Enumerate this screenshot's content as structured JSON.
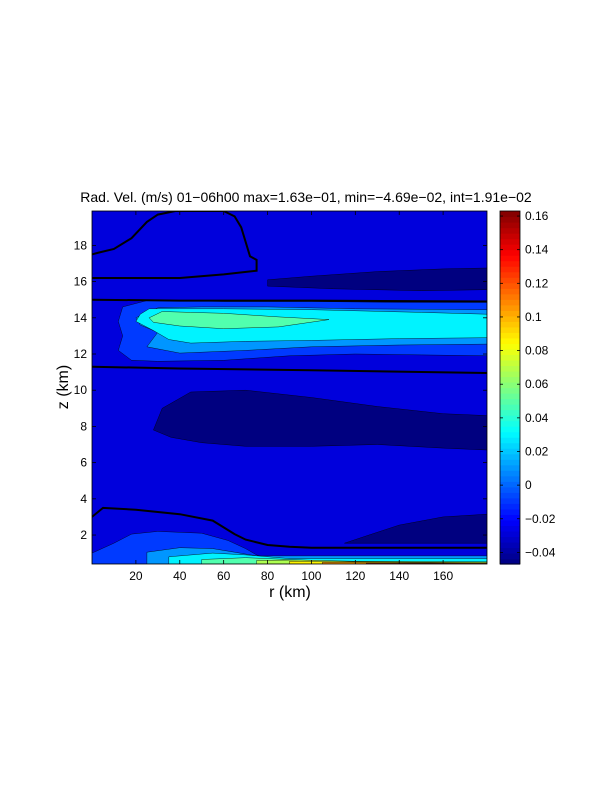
{
  "chart_data": {
    "type": "heatmap",
    "subtype": "filled-contour",
    "title": "Rad. Vel. (m/s) 01−06h00 max=1.63e−01, min=−4.69e−02, int=1.91e−02",
    "xlabel": "r (km)",
    "ylabel": "z (km)",
    "xlim": [
      0,
      180
    ],
    "ylim": [
      0.4,
      19.9
    ],
    "xticks": [
      20,
      40,
      60,
      80,
      100,
      120,
      140,
      160
    ],
    "yticks": [
      2,
      4,
      6,
      8,
      10,
      12,
      14,
      16,
      18
    ],
    "colorbar": {
      "colormap": "jet",
      "range": [
        -0.0469,
        0.163
      ],
      "ticks": [
        -0.04,
        -0.02,
        0,
        0.02,
        0.04,
        0.06,
        0.08,
        0.1,
        0.12,
        0.14,
        0.16
      ],
      "tick_labels": [
        "−0.04",
        "−0.02",
        "0",
        "0.02",
        "0.04",
        "0.06",
        "0.08",
        "0.1",
        "0.12",
        "0.14",
        "0.16"
      ]
    },
    "contour_interval": 0.0191,
    "regions": [
      {
        "level": -0.0278,
        "polygon": [
          [
            0,
            0.4
          ],
          [
            180,
            0.4
          ],
          [
            180,
            19.9
          ],
          [
            0,
            19.9
          ]
        ]
      },
      {
        "level": -0.0469,
        "polygon": [
          [
            28,
            7.8
          ],
          [
            32,
            9.0
          ],
          [
            45,
            9.9
          ],
          [
            70,
            10.0
          ],
          [
            100,
            9.6
          ],
          [
            130,
            9.1
          ],
          [
            160,
            8.7
          ],
          [
            180,
            8.6
          ],
          [
            180,
            6.7
          ],
          [
            160,
            6.8
          ],
          [
            130,
            7.0
          ],
          [
            100,
            6.9
          ],
          [
            70,
            6.9
          ],
          [
            50,
            7.1
          ],
          [
            36,
            7.4
          ]
        ]
      },
      {
        "level": -0.0469,
        "polygon": [
          [
            115,
            1.55
          ],
          [
            125,
            1.95
          ],
          [
            140,
            2.55
          ],
          [
            160,
            3.0
          ],
          [
            180,
            3.15
          ],
          [
            180,
            1.55
          ]
        ]
      },
      {
        "level": -0.0469,
        "polygon": [
          [
            80,
            16.1
          ],
          [
            100,
            16.3
          ],
          [
            130,
            16.55
          ],
          [
            160,
            16.7
          ],
          [
            180,
            16.75
          ],
          [
            180,
            15.55
          ],
          [
            150,
            15.5
          ],
          [
            110,
            15.6
          ],
          [
            80,
            15.75
          ]
        ]
      },
      {
        "level": -0.0088,
        "polygon": [
          [
            0,
            1.0
          ],
          [
            10,
            1.55
          ],
          [
            18,
            2.05
          ],
          [
            30,
            2.2
          ],
          [
            50,
            2.1
          ],
          [
            62,
            1.7
          ],
          [
            70,
            1.25
          ],
          [
            75,
            0.9
          ],
          [
            80,
            0.7
          ],
          [
            180,
            0.7
          ],
          [
            180,
            0.4
          ],
          [
            0,
            0.4
          ]
        ]
      },
      {
        "level": -0.0088,
        "polygon": [
          [
            14,
            14.6
          ],
          [
            25,
            14.95
          ],
          [
            40,
            14.95
          ],
          [
            60,
            14.9
          ],
          [
            100,
            14.9
          ],
          [
            140,
            14.85
          ],
          [
            180,
            14.85
          ],
          [
            180,
            11.9
          ],
          [
            150,
            11.95
          ],
          [
            120,
            12.0
          ],
          [
            90,
            11.9
          ],
          [
            60,
            11.65
          ],
          [
            30,
            11.6
          ],
          [
            18,
            11.65
          ],
          [
            12,
            12.2
          ],
          [
            14,
            13.0
          ],
          [
            12,
            13.8
          ]
        ]
      },
      {
        "level": 0.0103,
        "polygon": [
          [
            25,
            1.05
          ],
          [
            40,
            1.3
          ],
          [
            55,
            1.25
          ],
          [
            65,
            1.05
          ],
          [
            75,
            0.85
          ],
          [
            180,
            0.85
          ],
          [
            180,
            0.4
          ],
          [
            25,
            0.4
          ]
        ]
      },
      {
        "level": 0.0103,
        "polygon": [
          [
            20,
            14.0
          ],
          [
            30,
            14.55
          ],
          [
            50,
            14.6
          ],
          [
            80,
            14.6
          ],
          [
            120,
            14.5
          ],
          [
            180,
            14.45
          ],
          [
            180,
            12.55
          ],
          [
            140,
            12.5
          ],
          [
            100,
            12.4
          ],
          [
            70,
            12.2
          ],
          [
            40,
            12.05
          ],
          [
            25,
            12.4
          ],
          [
            30,
            13.2
          ],
          [
            22,
            13.6
          ]
        ]
      },
      {
        "level": 0.0294,
        "polygon": [
          [
            35,
            0.8
          ],
          [
            55,
            1.0
          ],
          [
            70,
            0.9
          ],
          [
            90,
            0.7
          ],
          [
            180,
            0.7
          ],
          [
            180,
            0.4
          ],
          [
            35,
            0.4
          ]
        ]
      },
      {
        "level": 0.0294,
        "polygon": [
          [
            22,
            14.2
          ],
          [
            26,
            14.5
          ],
          [
            40,
            14.5
          ],
          [
            60,
            14.5
          ],
          [
            100,
            14.45
          ],
          [
            150,
            14.3
          ],
          [
            180,
            14.2
          ],
          [
            180,
            12.9
          ],
          [
            140,
            12.85
          ],
          [
            100,
            12.75
          ],
          [
            70,
            12.7
          ],
          [
            45,
            12.6
          ],
          [
            35,
            12.8
          ],
          [
            28,
            13.3
          ],
          [
            20,
            13.8
          ]
        ]
      },
      {
        "level": 0.0485,
        "polygon": [
          [
            50,
            0.65
          ],
          [
            70,
            0.75
          ],
          [
            90,
            0.65
          ],
          [
            110,
            0.55
          ],
          [
            180,
            0.5
          ],
          [
            180,
            0.4
          ],
          [
            50,
            0.4
          ]
        ]
      },
      {
        "level": 0.0485,
        "polygon": [
          [
            26,
            14.0
          ],
          [
            32,
            14.35
          ],
          [
            45,
            14.3
          ],
          [
            60,
            14.25
          ],
          [
            85,
            14.05
          ],
          [
            108,
            13.9
          ],
          [
            85,
            13.5
          ],
          [
            60,
            13.4
          ],
          [
            40,
            13.55
          ],
          [
            28,
            13.75
          ]
        ]
      },
      {
        "level": 0.0676,
        "polygon": [
          [
            75,
            0.6
          ],
          [
            95,
            0.62
          ],
          [
            120,
            0.55
          ],
          [
            180,
            0.52
          ],
          [
            180,
            0.4
          ],
          [
            75,
            0.4
          ]
        ]
      },
      {
        "level": 0.0867,
        "polygon": [
          [
            90,
            0.55
          ],
          [
            120,
            0.52
          ],
          [
            180,
            0.48
          ],
          [
            180,
            0.4
          ],
          [
            90,
            0.4
          ]
        ]
      },
      {
        "level": 0.1058,
        "polygon": [
          [
            105,
            0.5
          ],
          [
            140,
            0.47
          ],
          [
            180,
            0.45
          ],
          [
            180,
            0.4
          ],
          [
            105,
            0.4
          ]
        ]
      },
      {
        "level": 0.1249,
        "polygon": [
          [
            125,
            0.45
          ],
          [
            160,
            0.44
          ],
          [
            180,
            0.43
          ],
          [
            180,
            0.4
          ],
          [
            125,
            0.4
          ]
        ]
      }
    ],
    "zero_contours": [
      [
        [
          0,
          17.5
        ],
        [
          3,
          17.6
        ],
        [
          10,
          17.8
        ],
        [
          18,
          18.4
        ],
        [
          25,
          19.3
        ],
        [
          30,
          19.7
        ],
        [
          38,
          19.9
        ]
      ],
      [
        [
          38,
          19.9
        ],
        [
          60,
          19.9
        ],
        [
          65,
          19.6
        ],
        [
          68,
          19.0
        ],
        [
          70,
          18.2
        ],
        [
          72,
          17.4
        ],
        [
          75,
          17.2
        ],
        [
          75,
          16.6
        ],
        [
          60,
          16.4
        ],
        [
          40,
          16.2
        ],
        [
          0,
          16.2
        ]
      ],
      [
        [
          0,
          15.0
        ],
        [
          40,
          14.95
        ],
        [
          100,
          14.95
        ],
        [
          180,
          14.9
        ]
      ],
      [
        [
          0,
          11.3
        ],
        [
          40,
          11.2
        ],
        [
          100,
          11.1
        ],
        [
          180,
          10.95
        ]
      ],
      [
        [
          0,
          3.0
        ],
        [
          5,
          3.5
        ],
        [
          20,
          3.4
        ],
        [
          40,
          3.15
        ],
        [
          55,
          2.8
        ],
        [
          65,
          2.05
        ],
        [
          70,
          1.75
        ],
        [
          80,
          1.45
        ],
        [
          90,
          1.35
        ],
        [
          100,
          1.3
        ],
        [
          180,
          1.3
        ]
      ]
    ]
  }
}
